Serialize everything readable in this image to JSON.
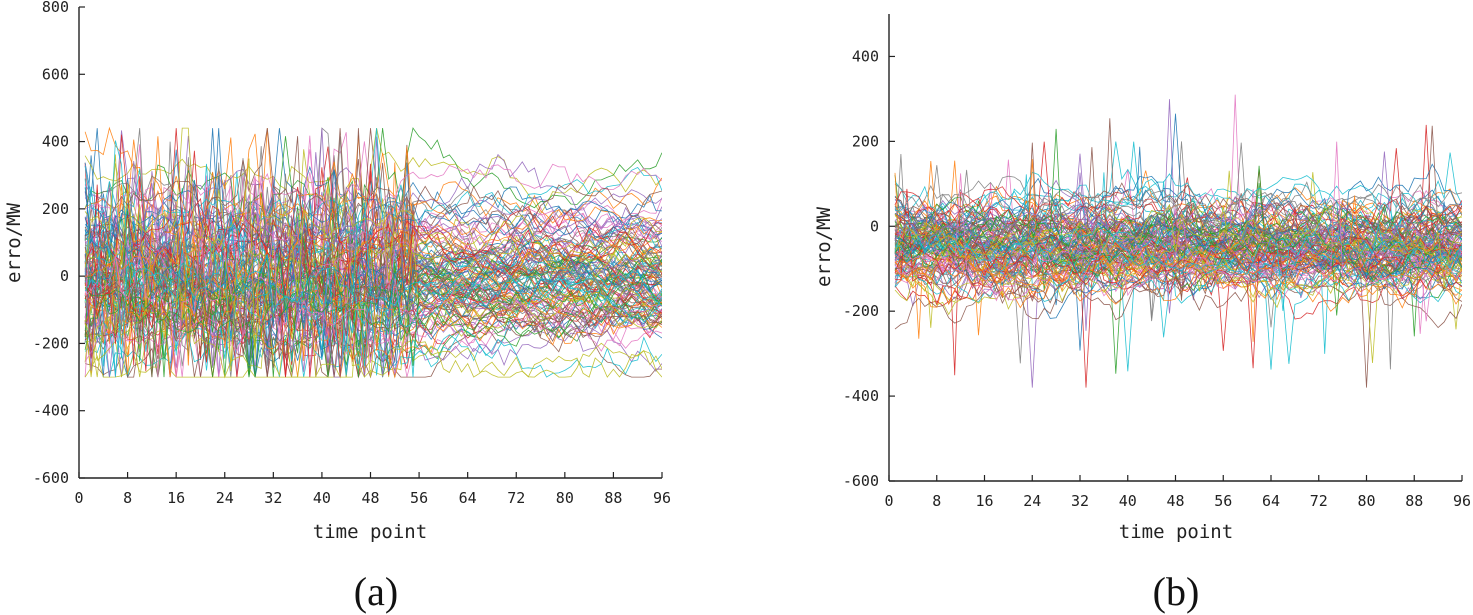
{
  "chart_data": [
    {
      "type": "line",
      "panel_label": "(a)",
      "xlabel": "time point",
      "ylabel": "erro/MW",
      "xlim": [
        0,
        96
      ],
      "ylim": [
        -600,
        800
      ],
      "x_ticks": [
        "0",
        "8",
        "16",
        "24",
        "32",
        "40",
        "48",
        "56",
        "64",
        "72",
        "80",
        "88",
        "96"
      ],
      "y_ticks": [
        "800",
        "600",
        "400",
        "200",
        "0",
        "-200",
        "-400",
        "-600"
      ],
      "grid": false,
      "legend": "none",
      "series_count": 130,
      "series_description_values": {
        "x_start": 1,
        "x_end": 96,
        "band_center_approx": 0,
        "band_range_approx": [
          -300,
          440
        ],
        "spike_region_x": [
          1,
          55
        ]
      }
    },
    {
      "type": "line",
      "panel_label": "(b)",
      "xlabel": "time point",
      "ylabel": "erro/MW",
      "xlim": [
        0,
        96
      ],
      "ylim": [
        -600,
        500
      ],
      "x_ticks": [
        "0",
        "8",
        "16",
        "24",
        "32",
        "40",
        "48",
        "56",
        "64",
        "72",
        "80",
        "88",
        "96"
      ],
      "y_ticks": [
        "400",
        "200",
        "0",
        "-200",
        "-400",
        "-600"
      ],
      "grid": false,
      "legend": "none",
      "series_count": 130,
      "series_description_values": {
        "x_start": 1,
        "x_end": 96,
        "band_center_approx": -50,
        "band_range_approx": [
          -380,
          310
        ]
      }
    }
  ],
  "palette": [
    "#1f77b4",
    "#ff7f0e",
    "#2ca02c",
    "#d62728",
    "#9467bd",
    "#8c564b",
    "#e377c2",
    "#7f7f7f",
    "#bcbd22",
    "#17becf"
  ]
}
